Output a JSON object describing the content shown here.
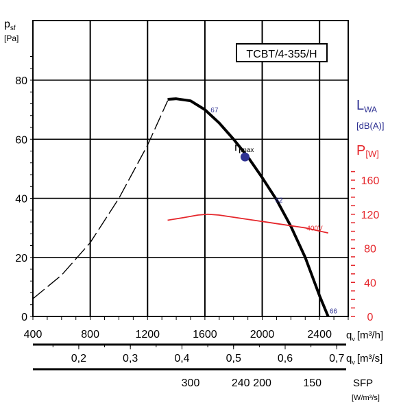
{
  "chart_data": {
    "type": "line",
    "model_label": "TCBT/4-355/H",
    "y_left": {
      "label": "p",
      "label_sub": "sf",
      "unit": "[Pa]",
      "range": [
        0,
        80
      ],
      "ticks": [
        "0",
        "20",
        "40",
        "60",
        "80"
      ],
      "tick_values": [
        0,
        20,
        40,
        60,
        80
      ]
    },
    "y_right_lwa": {
      "label": "L",
      "label_sub": "WA",
      "unit": "[dB(A)]",
      "color": "#2e3192"
    },
    "y_right_power": {
      "label": "P",
      "label_sub": "[W]",
      "color": "#e5262b",
      "range": [
        0,
        230
      ],
      "ticks": [
        "0",
        "40",
        "80",
        "120",
        "160"
      ],
      "tick_values": [
        0,
        40,
        80,
        120,
        160
      ]
    },
    "x_flow_m3h": {
      "label": "q",
      "label_sub": "v",
      "unit": "[m³/h]",
      "range": [
        400,
        2600
      ],
      "ticks": [
        "400",
        "800",
        "1200",
        "1600",
        "2000",
        "2400"
      ],
      "tick_values": [
        400,
        800,
        1200,
        1600,
        2000,
        2400
      ]
    },
    "x_flow_m3s": {
      "label": "q",
      "label_sub": "v",
      "unit": "[m³/s]",
      "ticks": [
        "0,2",
        "0,3",
        "0,4",
        "0,5",
        "0,6",
        "0,7"
      ],
      "tick_values": [
        0.2,
        0.3,
        0.4,
        0.5,
        0.6,
        0.7
      ]
    },
    "sfp_scale": {
      "label": "SFP",
      "unit": "[W/m³/s]",
      "ticks": [
        "300",
        "240",
        "200",
        "150"
      ],
      "tick_positions_m3h": [
        1500,
        1850,
        2000,
        2350
      ]
    },
    "series": [
      {
        "name": "",
        "style": "dashed",
        "color": "#000000",
        "x": [
          400,
          600,
          800,
          1000,
          1200,
          1340
        ],
        "y": [
          6,
          14,
          25,
          40,
          58,
          73
        ]
      },
      {
        "name": "",
        "style": "solid",
        "color": "#000000",
        "x": [
          1340,
          1400,
          1500,
          1600,
          1700,
          1800,
          1900,
          2000,
          2100,
          2200,
          2300,
          2400,
          2460
        ],
        "y": [
          73.5,
          73.7,
          73,
          70,
          65.5,
          60,
          54,
          47,
          39.5,
          30.5,
          20,
          7,
          0
        ]
      },
      {
        "name": "400V",
        "style": "solid",
        "color": "#e5262b",
        "axis": "power",
        "x": [
          1340,
          1450,
          1550,
          1620,
          1700,
          1900,
          2100,
          2300,
          2460
        ],
        "y": [
          113,
          116,
          119,
          120,
          119,
          114,
          109,
          104,
          98
        ]
      }
    ],
    "annotations": [
      {
        "text": "67",
        "x": 1640,
        "y": 70,
        "color": "#2e3192"
      },
      {
        "text": "62",
        "x": 2090,
        "y": 39.5,
        "color": "#2e3192"
      },
      {
        "text": "66",
        "x": 2470,
        "y": 2,
        "color": "#2e3192"
      },
      {
        "text": "400V",
        "x": 2310,
        "y": 104,
        "axis": "power",
        "color": "#e5262b"
      }
    ],
    "eta_max": {
      "symbol": "η",
      "sub": "max",
      "x": 1880,
      "y": 54,
      "color": "#2e3192"
    }
  }
}
